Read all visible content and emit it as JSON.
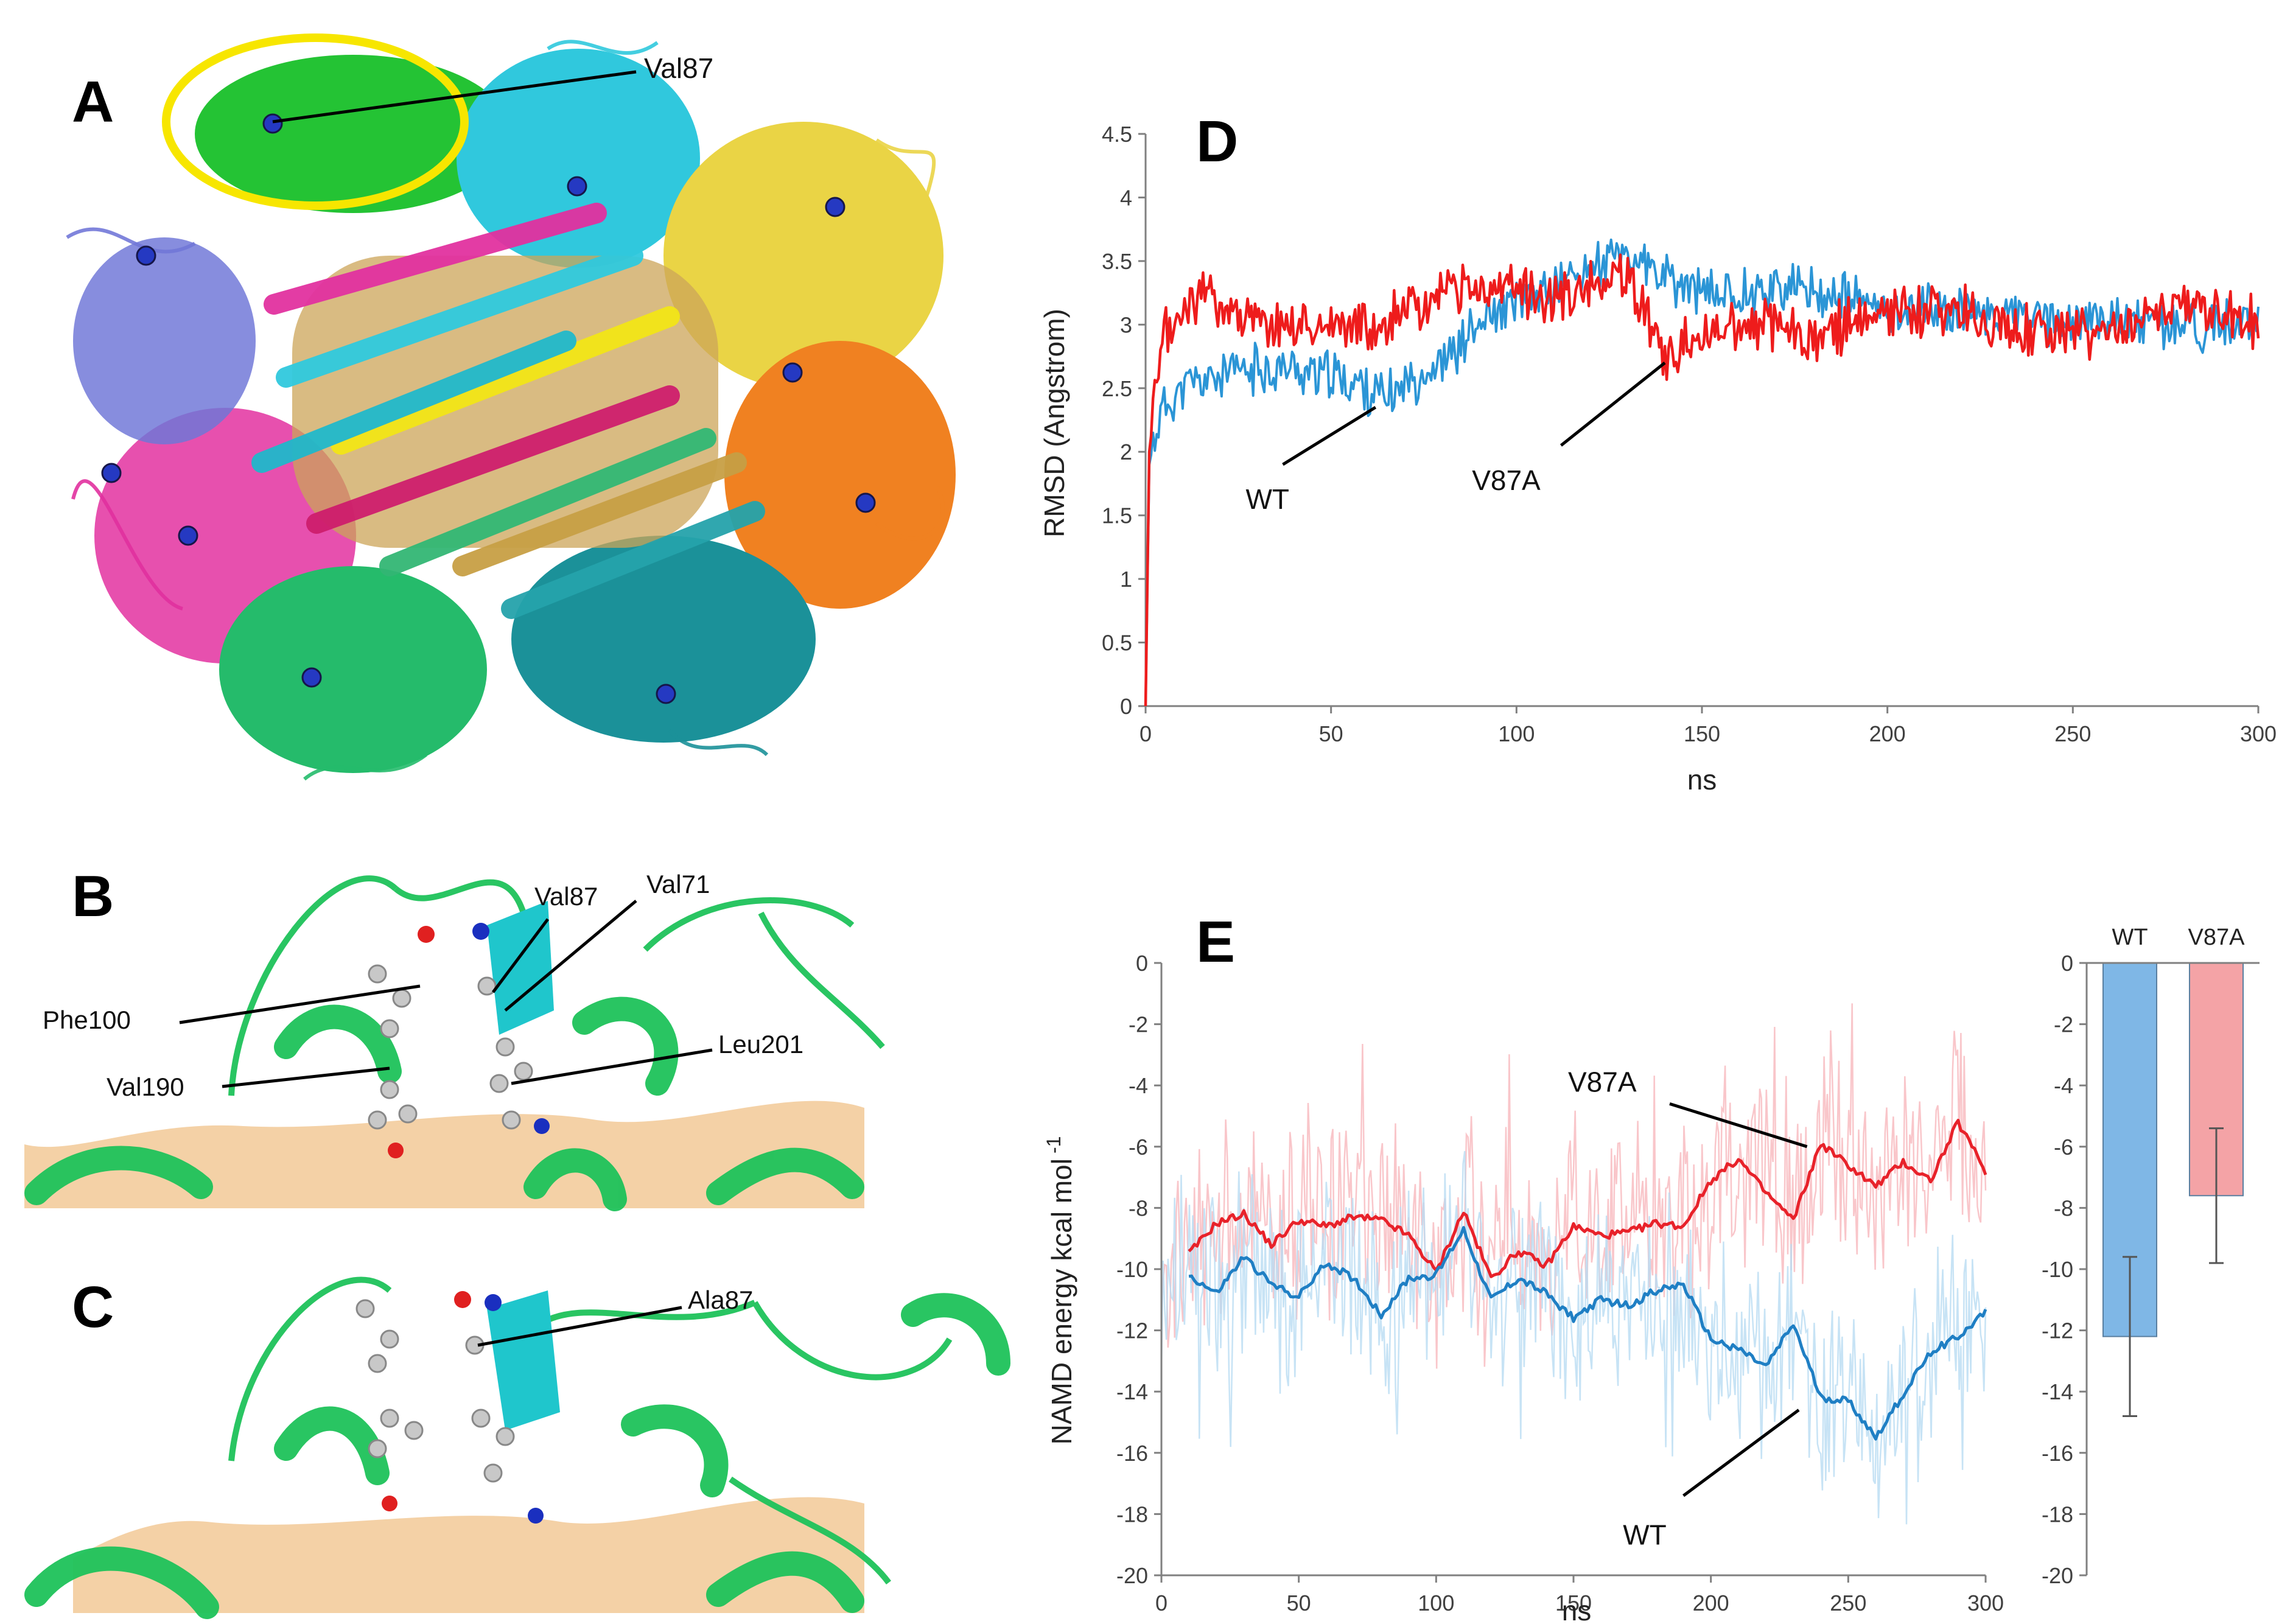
{
  "panels": {
    "A": {
      "label": "A",
      "annotation": "Val87"
    },
    "B": {
      "label": "B",
      "residues": [
        "Val87",
        "Val71",
        "Phe100",
        "Leu201",
        "Val190"
      ]
    },
    "C": {
      "label": "C",
      "residues": [
        "Ala87"
      ]
    },
    "D": {
      "label": "D"
    },
    "E": {
      "label": "E"
    }
  },
  "colors": {
    "wt": "#2b95d6",
    "v87a": "#ee1c1c",
    "wt_line": "#1f7fc4",
    "v87a_line": "#e8222a",
    "wt_raw": "#b9dcf3",
    "v87a_raw": "#f8b8bd",
    "wt_bar": "#7fb7e6",
    "v87a_bar": "#f4a3a6",
    "highlight": "#f7e600",
    "green_domain": "#1fbf4f"
  },
  "chart_data": [
    {
      "id": "D",
      "type": "line",
      "title": "",
      "xlabel": "ns",
      "ylabel": "RMSD (Angstrom)",
      "xlim": [
        0,
        300
      ],
      "ylim": [
        0,
        4.5
      ],
      "xticks": [
        0,
        50,
        100,
        150,
        200,
        250,
        300
      ],
      "yticks": [
        0,
        0.5,
        1,
        1.5,
        2,
        2.5,
        3,
        3.5,
        4,
        4.5
      ],
      "annotations": [
        "WT",
        "V87A"
      ],
      "series": [
        {
          "name": "WT",
          "color": "#2b95d6",
          "x": [
            0,
            1,
            3,
            5,
            10,
            20,
            30,
            40,
            50,
            60,
            65,
            70,
            80,
            90,
            100,
            110,
            120,
            130,
            140,
            150,
            160,
            170,
            180,
            190,
            200,
            210,
            220,
            230,
            240,
            250,
            260,
            270,
            280,
            290,
            300
          ],
          "y": [
            0,
            1.9,
            2.2,
            2.35,
            2.5,
            2.6,
            2.65,
            2.65,
            2.6,
            2.5,
            2.4,
            2.55,
            2.7,
            3.0,
            3.15,
            3.3,
            3.45,
            3.55,
            3.35,
            3.25,
            3.25,
            3.3,
            3.25,
            3.2,
            3.1,
            3.15,
            3.1,
            3.1,
            3.05,
            3.0,
            3.05,
            3.0,
            3.0,
            3.0,
            2.95
          ]
        },
        {
          "name": "V87A",
          "color": "#ee1c1c",
          "x": [
            0,
            1,
            3,
            5,
            10,
            15,
            20,
            30,
            40,
            50,
            60,
            65,
            70,
            75,
            80,
            90,
            100,
            110,
            120,
            130,
            140,
            150,
            160,
            170,
            180,
            190,
            200,
            210,
            220,
            230,
            240,
            250,
            260,
            270,
            280,
            290,
            300
          ],
          "y": [
            0,
            2.0,
            2.5,
            2.9,
            3.1,
            3.25,
            3.2,
            3.0,
            3.0,
            3.0,
            3.0,
            3.0,
            3.2,
            3.1,
            3.25,
            3.25,
            3.3,
            3.2,
            3.3,
            3.4,
            2.7,
            2.95,
            3.0,
            3.0,
            2.9,
            3.0,
            3.05,
            3.1,
            3.1,
            3.0,
            2.95,
            2.95,
            2.9,
            3.05,
            3.15,
            3.1,
            3.0
          ]
        }
      ]
    },
    {
      "id": "E-line",
      "type": "line",
      "title": "",
      "xlabel": "ns",
      "ylabel": "NAMD energy kcal mol",
      "ylabel_sup": "-1",
      "xlim": [
        0,
        300
      ],
      "ylim": [
        -20,
        0
      ],
      "xticks": [
        0,
        50,
        100,
        150,
        200,
        250,
        300
      ],
      "yticks": [
        0,
        -2,
        -4,
        -6,
        -8,
        -10,
        -12,
        -14,
        -16,
        -18,
        -20
      ],
      "annotations": [
        "V87A",
        "WT"
      ],
      "series": [
        {
          "name": "V87A",
          "color": "#e8222a",
          "x": [
            10,
            20,
            30,
            40,
            50,
            60,
            70,
            80,
            90,
            100,
            110,
            120,
            130,
            140,
            150,
            160,
            170,
            180,
            190,
            200,
            210,
            220,
            230,
            240,
            250,
            260,
            270,
            280,
            290,
            300
          ],
          "y": [
            -9.5,
            -8.5,
            -8.2,
            -9.2,
            -8.4,
            -8.6,
            -8.3,
            -8.4,
            -8.9,
            -10.1,
            -8.1,
            -10.3,
            -9.4,
            -9.9,
            -8.6,
            -8.9,
            -8.8,
            -8.5,
            -8.6,
            -7.1,
            -6.4,
            -7.5,
            -8.4,
            -5.9,
            -6.6,
            -7.3,
            -6.5,
            -7.1,
            -5.2,
            -6.8
          ]
        },
        {
          "name": "WT",
          "color": "#1f7fc4",
          "x": [
            10,
            20,
            30,
            40,
            50,
            60,
            70,
            80,
            90,
            100,
            110,
            120,
            130,
            140,
            150,
            160,
            170,
            180,
            190,
            200,
            210,
            220,
            230,
            240,
            250,
            260,
            270,
            280,
            290,
            300
          ],
          "y": [
            -10.2,
            -10.8,
            -9.6,
            -10.5,
            -10.9,
            -9.8,
            -10.3,
            -11.5,
            -10.3,
            -10.2,
            -8.7,
            -11.0,
            -10.3,
            -10.8,
            -11.6,
            -11.0,
            -11.2,
            -10.7,
            -10.5,
            -12.3,
            -12.6,
            -13.2,
            -11.8,
            -14.2,
            -14.3,
            -15.5,
            -14.1,
            -12.7,
            -12.2,
            -11.4
          ]
        }
      ]
    },
    {
      "id": "E-bar",
      "type": "bar",
      "title": "",
      "categories": [
        "WT",
        "V87A"
      ],
      "values": [
        -12.2,
        -7.6
      ],
      "errors": [
        2.6,
        2.2
      ],
      "ylim": [
        -20,
        0
      ],
      "yticks": [
        0,
        -2,
        -4,
        -6,
        -8,
        -10,
        -12,
        -14,
        -16,
        -18,
        -20
      ],
      "colors": [
        "#7fb7e6",
        "#f4a3a6"
      ]
    }
  ]
}
